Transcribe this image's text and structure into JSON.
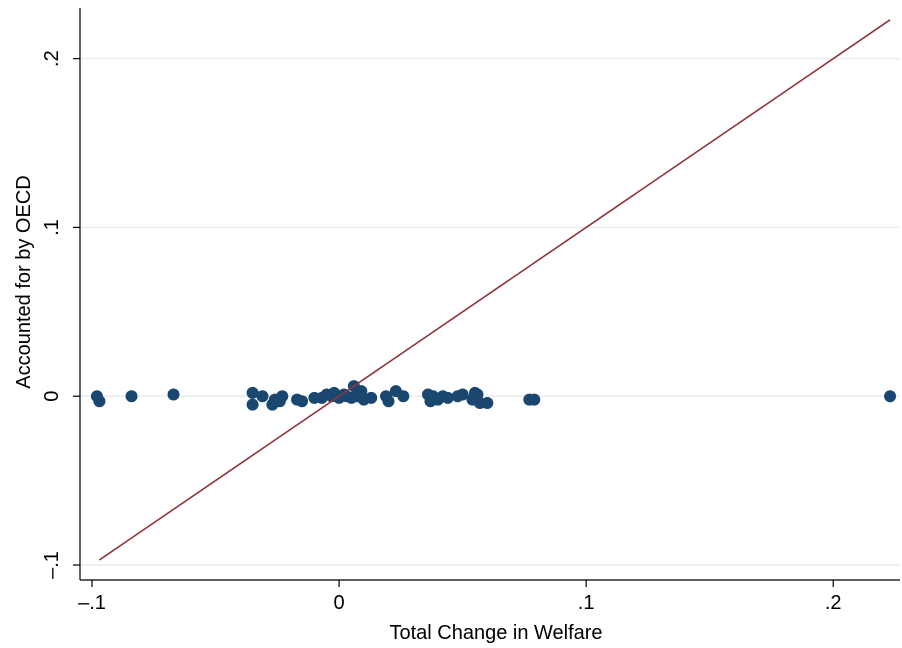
{
  "chart_data": {
    "type": "scatter",
    "xlabel": "Total Change in Welfare",
    "ylabel": "Accounted for by OECD",
    "xlim": [
      -0.1,
      0.225
    ],
    "ylim": [
      -0.1,
      0.23
    ],
    "x_ticks": [
      -0.1,
      0,
      0.1,
      0.2
    ],
    "x_tick_labels": [
      "–.1",
      "0",
      ".1",
      ".2"
    ],
    "y_ticks": [
      -0.1,
      0,
      0.1,
      0.2
    ],
    "y_tick_labels": [
      "–.1",
      "0",
      ".1",
      ".2"
    ],
    "grid": true,
    "marker_color": "#1a476f",
    "line_color": "#90353b",
    "series": [
      {
        "type": "scatter",
        "points": [
          [
            -0.098,
            0.0
          ],
          [
            -0.097,
            -0.003
          ],
          [
            -0.084,
            0.0
          ],
          [
            -0.067,
            0.001
          ],
          [
            -0.035,
            0.002
          ],
          [
            -0.035,
            -0.005
          ],
          [
            -0.031,
            0.0
          ],
          [
            -0.027,
            -0.005
          ],
          [
            -0.026,
            -0.002
          ],
          [
            -0.024,
            -0.003
          ],
          [
            -0.023,
            0.0
          ],
          [
            -0.017,
            -0.002
          ],
          [
            -0.015,
            -0.003
          ],
          [
            -0.01,
            -0.001
          ],
          [
            -0.007,
            -0.001
          ],
          [
            -0.005,
            0.001
          ],
          [
            -0.003,
            0.0
          ],
          [
            -0.002,
            0.002
          ],
          [
            0.0,
            -0.001
          ],
          [
            0.002,
            0.001
          ],
          [
            0.003,
            0.0
          ],
          [
            0.005,
            -0.001
          ],
          [
            0.006,
            0.006
          ],
          [
            0.007,
            0.0
          ],
          [
            0.008,
            0.001
          ],
          [
            0.009,
            0.003
          ],
          [
            0.01,
            -0.002
          ],
          [
            0.013,
            -0.001
          ],
          [
            0.019,
            0.0
          ],
          [
            0.02,
            -0.003
          ],
          [
            0.023,
            0.003
          ],
          [
            0.026,
            0.0
          ],
          [
            0.036,
            0.001
          ],
          [
            0.037,
            -0.003
          ],
          [
            0.038,
            0.0
          ],
          [
            0.04,
            -0.002
          ],
          [
            0.042,
            0.0
          ],
          [
            0.044,
            -0.001
          ],
          [
            0.048,
            0.0
          ],
          [
            0.05,
            0.001
          ],
          [
            0.054,
            -0.002
          ],
          [
            0.055,
            0.002
          ],
          [
            0.056,
            0.001
          ],
          [
            0.057,
            -0.004
          ],
          [
            0.06,
            -0.004
          ],
          [
            0.077,
            -0.002
          ],
          [
            0.079,
            -0.002
          ],
          [
            0.223,
            0.0
          ]
        ]
      },
      {
        "type": "line",
        "points": [
          [
            -0.097,
            -0.097
          ],
          [
            0.223,
            0.223
          ]
        ]
      }
    ]
  }
}
